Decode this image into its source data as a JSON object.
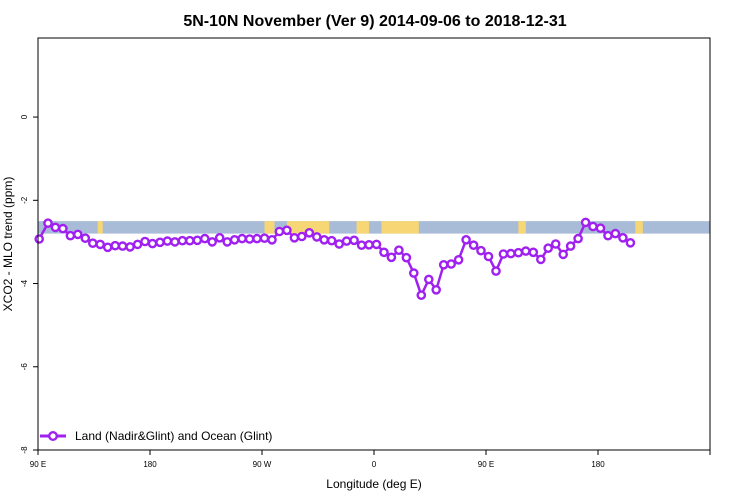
{
  "chart_data": {
    "type": "line",
    "title": "5N-10N November (Ver 9)   2014-09-06 to 2018-12-31",
    "xlabel": "Longitude (deg E)",
    "ylabel": "XCO2 - MLO trend (ppm)",
    "xlim": [
      -90,
      180
    ],
    "ylim": [
      -8,
      1.9
    ],
    "x_ticks": [
      {
        "value": -90,
        "label": "90 E"
      },
      {
        "value": -45,
        "label": "180"
      },
      {
        "value": 0,
        "label": "90 W"
      },
      {
        "value": 45,
        "label": "0"
      },
      {
        "value": 90,
        "label": "90 E"
      },
      {
        "value": 135,
        "label": "180"
      }
    ],
    "y_ticks": [
      0,
      -2,
      -4,
      -6,
      -8
    ],
    "grid": false,
    "legend_position": "bottom-left",
    "colors": {
      "series": "#a020f0",
      "ocean_band": "#a8bcd8",
      "land_band": "#f7d775"
    },
    "map_band": {
      "y_range": [
        -2.8,
        -2.5
      ],
      "land_segments": [
        [
          -66,
          -64
        ],
        [
          1,
          5
        ],
        [
          10,
          27
        ],
        [
          38,
          43
        ],
        [
          48,
          63
        ],
        [
          103,
          106
        ],
        [
          150,
          153
        ]
      ]
    },
    "series": [
      {
        "name": "Land (Nadir&Glint) and Ocean (Glint)",
        "x": [
          -89.5,
          -86,
          -83,
          -80,
          -77,
          -74,
          -71,
          -68,
          -65,
          -62,
          -59,
          -56,
          -53,
          -50,
          -47,
          -44,
          -41,
          -38,
          -35,
          -32,
          -29,
          -26,
          -23,
          -20,
          -17,
          -14,
          -11,
          -8,
          -5,
          -2,
          1,
          4,
          7,
          10,
          13,
          16,
          19,
          22,
          25,
          28,
          31,
          34,
          37,
          40,
          43,
          46,
          49,
          52,
          55,
          58,
          61,
          64,
          67,
          70,
          73,
          76,
          79,
          82,
          85,
          88,
          91,
          94,
          97,
          100,
          103,
          106,
          109,
          112,
          115,
          118,
          121,
          124,
          127,
          130,
          133,
          136,
          139,
          142,
          145,
          148
        ],
        "y": [
          -2.93,
          -2.55,
          -2.65,
          -2.68,
          -2.85,
          -2.82,
          -2.91,
          -3.03,
          -3.06,
          -3.13,
          -3.09,
          -3.1,
          -3.12,
          -3.06,
          -2.99,
          -3.04,
          -3.01,
          -2.98,
          -3.0,
          -2.97,
          -2.97,
          -2.96,
          -2.92,
          -3.0,
          -2.9,
          -3.0,
          -2.95,
          -2.92,
          -2.93,
          -2.92,
          -2.91,
          -2.95,
          -2.75,
          -2.72,
          -2.9,
          -2.87,
          -2.78,
          -2.88,
          -2.95,
          -2.97,
          -3.05,
          -2.98,
          -2.96,
          -3.08,
          -3.07,
          -3.06,
          -3.25,
          -3.37,
          -3.2,
          -3.38,
          -3.75,
          -4.28,
          -3.9,
          -4.15,
          -3.55,
          -3.53,
          -3.43,
          -2.95,
          -3.08,
          -3.21,
          -3.35,
          -3.7,
          -3.29,
          -3.28,
          -3.26,
          -3.22,
          -3.25,
          -3.42,
          -3.15,
          -3.05,
          -3.3,
          -3.1,
          -2.92,
          -2.53,
          -2.63,
          -2.67,
          -2.85,
          -2.8,
          -2.9,
          -3.02
        ]
      }
    ]
  }
}
